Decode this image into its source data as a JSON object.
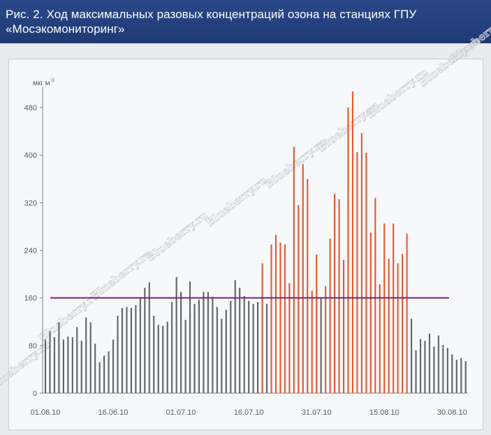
{
  "header": {
    "title": "Рис. 2. Ход максимальных разовых концентраций озона на станциях ГПУ «Мосэкомониторинг»"
  },
  "watermark": {
    "text": "Blueberry.ru"
  },
  "chart_data": {
    "type": "bar",
    "title": "Рис. 2. Ход максимальных разовых концентраций озона на станциях ГПУ «Мосэкомониторинг»",
    "ylabel": "мкг м",
    "ylabel_sup": "-3",
    "xlabel": "",
    "ylim": [
      0,
      500
    ],
    "yticks": [
      "0",
      "80",
      "160",
      "240",
      "320",
      "400",
      "480"
    ],
    "xticks": [
      {
        "label": "01.06.10",
        "day": 1
      },
      {
        "label": "16.06.10",
        "day": 16
      },
      {
        "label": "01.07.10",
        "day": 31
      },
      {
        "label": "16.07.10",
        "day": 46
      },
      {
        "label": "31.07.10",
        "day": 61
      },
      {
        "label": "15.08.10",
        "day": 76
      },
      {
        "label": "30.08.10",
        "day": 91
      }
    ],
    "threshold": {
      "value": 160,
      "color": "#6a2c6e"
    },
    "colors": {
      "normal": "#5f6369",
      "high": "#e5572e",
      "axis": "#7a7e85"
    },
    "high_range_days": [
      47,
      81
    ],
    "values": [
      90,
      104,
      94,
      119,
      90,
      95,
      94,
      111,
      88,
      127,
      119,
      83,
      52,
      63,
      70,
      90,
      130,
      143,
      145,
      143,
      148,
      160,
      177,
      186,
      130,
      115,
      113,
      120,
      153,
      195,
      170,
      123,
      188,
      150,
      157,
      170,
      170,
      162,
      145,
      125,
      140,
      155,
      190,
      177,
      163,
      155,
      150,
      153,
      218,
      150,
      250,
      266,
      253,
      250,
      185,
      414,
      316,
      385,
      360,
      172,
      233,
      160,
      180,
      260,
      335,
      326,
      224,
      480,
      507,
      405,
      437,
      404,
      270,
      328,
      183,
      285,
      226,
      285,
      218,
      234,
      268,
      125,
      72,
      91,
      88,
      100,
      78,
      97,
      81,
      76,
      65,
      56,
      59,
      54
    ]
  }
}
